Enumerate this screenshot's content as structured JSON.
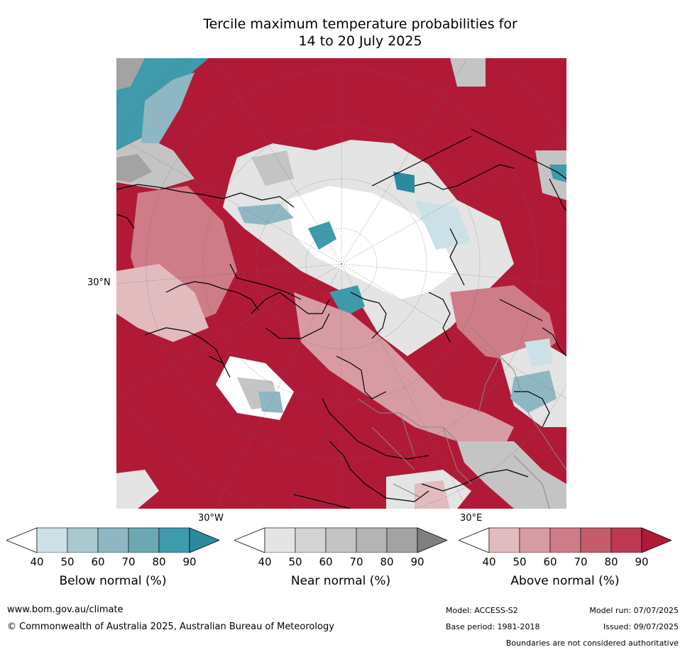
{
  "title_line1": "Tercile maximum temperature probabilities for",
  "title_line2": "14 to 20 July 2025",
  "map": {
    "lat_label": "30°N",
    "lon_label_west": "30°W",
    "lon_label_east": "30°E",
    "colors": {
      "above_90": "#b11a37",
      "above_80": "#bd3951",
      "above_70": "#c55c6c",
      "above_60": "#ce7c87",
      "above_50": "#d79ca3",
      "above_40": "#e2bbbf",
      "near_40": "#e4e4e4",
      "near_60": "#c4c4c4",
      "near_80": "#a3a3a3",
      "below_40": "#cbe1e7",
      "below_60": "#8fb7c3",
      "below_80": "#3f9aab",
      "below_90": "#2a8a9f"
    }
  },
  "legends": [
    {
      "label": "Below normal (%)",
      "ticks": [
        "40",
        "50",
        "60",
        "70",
        "80",
        "90"
      ],
      "colors": [
        "#cbe1e7",
        "#a9c9d1",
        "#8fb7c3",
        "#6aa8b4",
        "#3f9aab",
        "#2a8a9f"
      ]
    },
    {
      "label": "Near normal (%)",
      "ticks": [
        "40",
        "50",
        "60",
        "70",
        "80",
        "90"
      ],
      "colors": [
        "#e4e4e4",
        "#d4d4d4",
        "#c4c4c4",
        "#b4b4b4",
        "#a3a3a3",
        "#808080"
      ]
    },
    {
      "label": "Above normal (%)",
      "ticks": [
        "40",
        "50",
        "60",
        "70",
        "80",
        "90"
      ],
      "colors": [
        "#e2bbbf",
        "#d79ca3",
        "#ce7c87",
        "#c55c6c",
        "#bd3951",
        "#b11a37"
      ]
    }
  ],
  "footer": {
    "website": "www.bom.gov.au/climate",
    "copyright": "© Commonwealth of Australia 2025, Australian Bureau of Meteorology",
    "model": "Model: ACCESS-S2",
    "base_period": "Base period: 1981-2018",
    "model_run": "Model run: 07/07/2025",
    "issued": "Issued: 09/07/2025",
    "disclaimer": "Boundaries are not considered authoritative"
  }
}
